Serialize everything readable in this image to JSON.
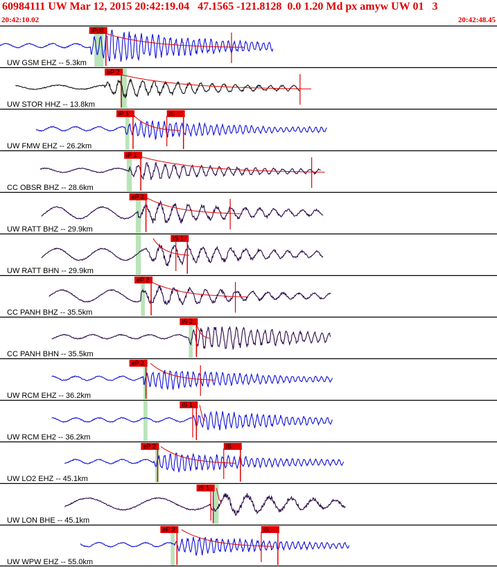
{
  "header": {
    "title": "60984111 UW Mar 12, 2015 20:42:19.04   47.1565 -121.8128  0.0 1.20 Md px amyw UW 01   3",
    "start_time": "20:42:10.02",
    "end_time": "20:42:48.45"
  },
  "colors": {
    "header_red": "#e00000",
    "pick_red": "#e00000",
    "window_green": "#b9e4b9",
    "trace_blue": "#1010d8",
    "trace_black": "#101010",
    "trace_purple": "#2a0a4a"
  },
  "chart_data": {
    "type": "line",
    "title": "60984111 UW Mar 12, 2015 20:42:19.04   47.1565 -121.8128  0.0 1.20 Md px amyw UW 01   3",
    "time_range": [
      "20:42:10.02",
      "20:42:48.45"
    ],
    "duration_s": 38.43,
    "grid": false,
    "series": [
      {
        "name": "UW GSM EHZ -- 5.3km",
        "color": "#1010d8",
        "start": 0.0,
        "end": 21.1,
        "onset": 7.0,
        "picks": [
          {
            "label": "iPd0",
            "t": 6.9
          }
        ],
        "green": [
          7.3,
          8.0
        ],
        "coda": 17.9,
        "amp": 0.95,
        "period": 0.45
      },
      {
        "name": "UW STOR HHZ -- 13.8km",
        "color": "#101010",
        "start": 1.2,
        "end": 23.2,
        "onset": 8.1,
        "picks": [
          {
            "label": "eP 2",
            "t": 8.1
          }
        ],
        "green": [
          9.3,
          9.8
        ],
        "coda": 23.2,
        "amp": 0.55,
        "period": 0.9
      },
      {
        "name": "UW FMW EHZ -- 26.2km",
        "color": "#1010d8",
        "start": 2.8,
        "end": 25.3,
        "onset": 9.7,
        "picks": [
          {
            "label": "iP 1",
            "t": 9.0
          },
          {
            "label": "iS",
            "t": 12.9
          }
        ],
        "green": [
          9.7,
          10.0
        ],
        "coda": 12.9,
        "amp": 0.55,
        "period": 0.45
      },
      {
        "name": "CC OBSR BHZ -- 28.6km",
        "color": "#2a0a4a",
        "start": 3.1,
        "end": 24.8,
        "onset": 10.0,
        "picks": [
          {
            "label": "iP 1",
            "t": 9.6
          }
        ],
        "green": [
          9.8,
          10.2
        ],
        "coda": 24.1,
        "amp": 0.5,
        "period": 0.7
      },
      {
        "name": "UW RATT BHZ -- 29.9km",
        "color": "#2a0a4a",
        "start": 3.2,
        "end": 25.0,
        "onset": 10.7,
        "picks": [
          {
            "label": "eP 2",
            "t": 10.0
          }
        ],
        "green": [
          10.5,
          10.9
        ],
        "coda": 17.8,
        "amp": 0.65,
        "period": 1.1
      },
      {
        "name": "UW RATT BHN -- 29.9km",
        "color": "#2a0a4a",
        "start": 3.2,
        "end": 25.0,
        "onset": 11.3,
        "picks": [
          {
            "label": "iS 1",
            "t": 13.2
          }
        ],
        "green": [
          10.5,
          10.9
        ],
        "coda": 13.6,
        "amp": 0.65,
        "period": 1.1
      },
      {
        "name": "CC PANH BHZ -- 35.5km",
        "color": "#2a0a4a",
        "start": 3.8,
        "end": 25.6,
        "onset": 10.9,
        "picks": [
          {
            "label": "eP 2",
            "t": 10.4
          }
        ],
        "green": [
          10.9,
          11.2
        ],
        "coda": 18.2,
        "amp": 0.6,
        "period": 1.2
      },
      {
        "name": "CC PANH BHN -- 35.5km",
        "color": "#2a0a4a",
        "start": 4.0,
        "end": 25.6,
        "onset": 14.6,
        "picks": [
          {
            "label": "iS 2",
            "t": 13.9
          }
        ],
        "green": [
          14.6,
          14.9
        ],
        "coda": 15.2,
        "amp": 0.75,
        "period": 0.55
      },
      {
        "name": "UW RCM EHZ -- 36.2km",
        "color": "#1010d8",
        "start": 4.0,
        "end": 25.7,
        "onset": 11.1,
        "picks": [
          {
            "label": "eP 2",
            "t": 10.0
          }
        ],
        "green": [
          11.1,
          11.4
        ],
        "coda": 15.5,
        "amp": 0.6,
        "period": 0.45
      },
      {
        "name": "UW RCM EH2 -- 36.2km",
        "color": "#1010d8",
        "start": 4.0,
        "end": 25.7,
        "onset": 14.9,
        "picks": [
          {
            "label": "iS 1",
            "t": 13.9
          }
        ],
        "green": [
          11.1,
          11.4
        ],
        "coda": 14.9,
        "amp": 0.55,
        "period": 0.45
      },
      {
        "name": "UW LO2 EHZ -- 45.1km",
        "color": "#1010d8",
        "start": 5.0,
        "end": 26.6,
        "onset": 11.9,
        "picks": [
          {
            "label": "eP 2",
            "t": 10.9
          },
          {
            "label": "iS",
            "t": 17.3
          }
        ],
        "green": [
          12.0,
          12.3
        ],
        "coda": 17.3,
        "amp": 0.6,
        "period": 0.45
      },
      {
        "name": "UW LON BHE -- 45.1km",
        "color": "#2a0a4a",
        "start": 5.0,
        "end": 26.7,
        "onset": 16.2,
        "picks": [
          {
            "label": "iS 1",
            "t": 15.2
          }
        ],
        "green": [
          16.5,
          16.9
        ],
        "coda": 16.3,
        "amp": 0.65,
        "period": 1.7
      },
      {
        "name": "UW WPW EHZ -- 55.0km",
        "color": "#1010d8",
        "start": 6.2,
        "end": 27.0,
        "onset": 13.5,
        "picks": [
          {
            "label": "eP 2",
            "t": 12.4
          },
          {
            "label": "iS",
            "t": 20.2
          }
        ],
        "green": [
          13.2,
          13.5
        ],
        "coda": 20.2,
        "amp": 0.55,
        "period": 0.45
      }
    ]
  }
}
